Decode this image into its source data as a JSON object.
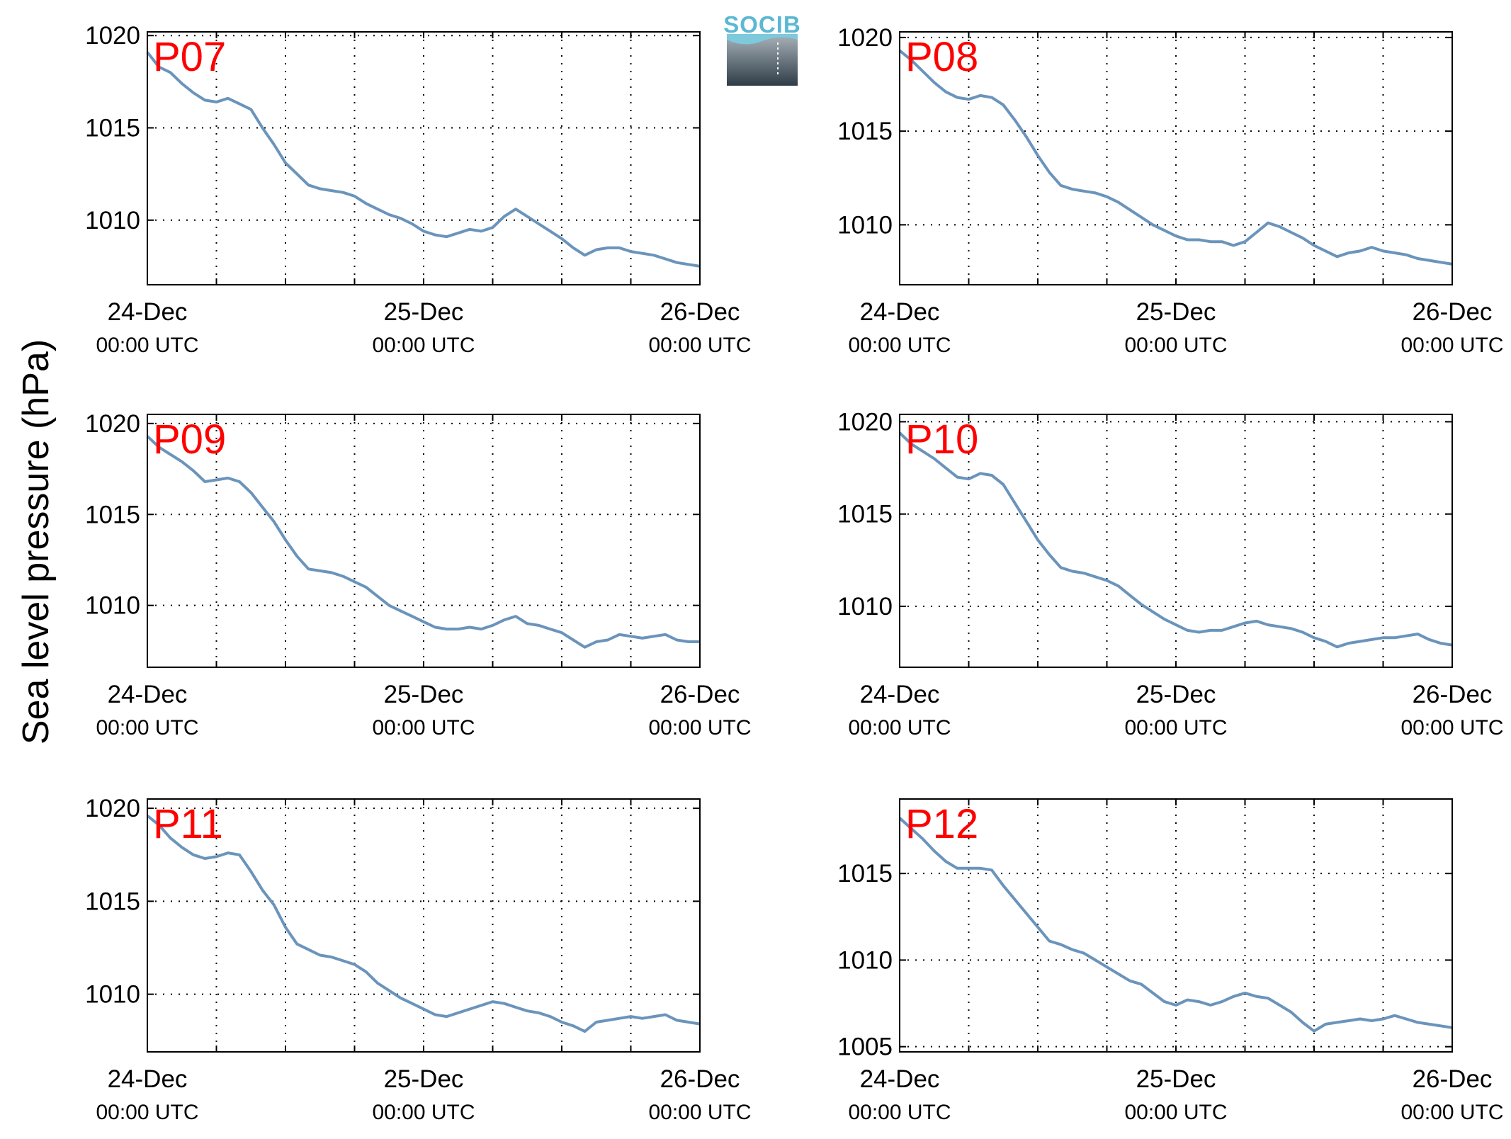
{
  "figure": {
    "ylabel": "Sea level pressure (hPa)",
    "logo_text": "SOCIB",
    "line_color": "#6a94bb",
    "label_color": "#ff0000"
  },
  "chart_data": [
    {
      "type": "line",
      "label": "P07",
      "xlim": [
        0,
        48
      ],
      "ylim": [
        1006.5,
        1020.2
      ],
      "yticks": [
        1010,
        1015,
        1020
      ],
      "xticks": [
        0,
        6,
        12,
        18,
        24,
        30,
        36,
        42,
        48
      ],
      "xticklabels": [
        {
          "at": 0,
          "date": "24-Dec",
          "time": "00:00 UTC"
        },
        {
          "at": 24,
          "date": "25-Dec",
          "time": "00:00 UTC"
        },
        {
          "at": 48,
          "date": "26-Dec",
          "time": "00:00 UTC"
        }
      ],
      "grid": true,
      "x": [
        0,
        1,
        2,
        3,
        4,
        5,
        6,
        7,
        8,
        9,
        10,
        11,
        12,
        13,
        14,
        15,
        16,
        17,
        18,
        19,
        20,
        21,
        22,
        23,
        24,
        25,
        26,
        27,
        28,
        29,
        30,
        31,
        32,
        33,
        34,
        35,
        36,
        37,
        38,
        39,
        40,
        41,
        42,
        43,
        44,
        45,
        46,
        47,
        48
      ],
      "y": [
        1019.1,
        1018.3,
        1018.0,
        1017.4,
        1016.9,
        1016.5,
        1016.4,
        1016.6,
        1016.3,
        1016.0,
        1015.0,
        1014.1,
        1013.1,
        1012.5,
        1011.9,
        1011.7,
        1011.6,
        1011.5,
        1011.3,
        1010.9,
        1010.6,
        1010.3,
        1010.1,
        1009.8,
        1009.4,
        1009.2,
        1009.1,
        1009.3,
        1009.5,
        1009.4,
        1009.6,
        1010.2,
        1010.6,
        1010.2,
        1009.8,
        1009.4,
        1009.0,
        1008.5,
        1008.1,
        1008.4,
        1008.5,
        1008.5,
        1008.3,
        1008.2,
        1008.1,
        1007.9,
        1007.7,
        1007.6,
        1007.5
      ]
    },
    {
      "type": "line",
      "label": "P08",
      "xlim": [
        0,
        48
      ],
      "ylim": [
        1006.8,
        1020.3
      ],
      "yticks": [
        1010,
        1015,
        1020
      ],
      "xticks": [
        0,
        6,
        12,
        18,
        24,
        30,
        36,
        42,
        48
      ],
      "xticklabels": [
        {
          "at": 0,
          "date": "24-Dec",
          "time": "00:00 UTC"
        },
        {
          "at": 24,
          "date": "25-Dec",
          "time": "00:00 UTC"
        },
        {
          "at": 48,
          "date": "26-Dec",
          "time": "00:00 UTC"
        }
      ],
      "grid": true,
      "x": [
        0,
        1,
        2,
        3,
        4,
        5,
        6,
        7,
        8,
        9,
        10,
        11,
        12,
        13,
        14,
        15,
        16,
        17,
        18,
        19,
        20,
        21,
        22,
        23,
        24,
        25,
        26,
        27,
        28,
        29,
        30,
        31,
        32,
        33,
        34,
        35,
        36,
        37,
        38,
        39,
        40,
        41,
        42,
        43,
        44,
        45,
        46,
        47,
        48
      ],
      "y": [
        1019.3,
        1018.8,
        1018.2,
        1017.6,
        1017.1,
        1016.8,
        1016.7,
        1016.9,
        1016.8,
        1016.4,
        1015.6,
        1014.7,
        1013.7,
        1012.8,
        1012.1,
        1011.9,
        1011.8,
        1011.7,
        1011.5,
        1011.2,
        1010.8,
        1010.4,
        1010.0,
        1009.7,
        1009.4,
        1009.2,
        1009.2,
        1009.1,
        1009.1,
        1008.9,
        1009.1,
        1009.6,
        1010.1,
        1009.9,
        1009.6,
        1009.3,
        1008.9,
        1008.6,
        1008.3,
        1008.5,
        1008.6,
        1008.8,
        1008.6,
        1008.5,
        1008.4,
        1008.2,
        1008.1,
        1008.0,
        1007.9
      ]
    },
    {
      "type": "line",
      "label": "P09",
      "xlim": [
        0,
        48
      ],
      "ylim": [
        1006.6,
        1020.5
      ],
      "yticks": [
        1010,
        1015,
        1020
      ],
      "xticks": [
        0,
        6,
        12,
        18,
        24,
        30,
        36,
        42,
        48
      ],
      "xticklabels": [
        {
          "at": 0,
          "date": "24-Dec",
          "time": "00:00 UTC"
        },
        {
          "at": 24,
          "date": "25-Dec",
          "time": "00:00 UTC"
        },
        {
          "at": 48,
          "date": "26-Dec",
          "time": "00:00 UTC"
        }
      ],
      "grid": true,
      "x": [
        0,
        1,
        2,
        3,
        4,
        5,
        6,
        7,
        8,
        9,
        10,
        11,
        12,
        13,
        14,
        15,
        16,
        17,
        18,
        19,
        20,
        21,
        22,
        23,
        24,
        25,
        26,
        27,
        28,
        29,
        30,
        31,
        32,
        33,
        34,
        35,
        36,
        37,
        38,
        39,
        40,
        41,
        42,
        43,
        44,
        45,
        46,
        47,
        48
      ],
      "y": [
        1019.3,
        1018.7,
        1018.3,
        1017.9,
        1017.4,
        1016.8,
        1016.9,
        1017.0,
        1016.8,
        1016.2,
        1015.4,
        1014.6,
        1013.6,
        1012.7,
        1012.0,
        1011.9,
        1011.8,
        1011.6,
        1011.3,
        1011.0,
        1010.5,
        1010.0,
        1009.7,
        1009.4,
        1009.1,
        1008.8,
        1008.7,
        1008.7,
        1008.8,
        1008.7,
        1008.9,
        1009.2,
        1009.4,
        1009.0,
        1008.9,
        1008.7,
        1008.5,
        1008.1,
        1007.7,
        1008.0,
        1008.1,
        1008.4,
        1008.3,
        1008.2,
        1008.3,
        1008.4,
        1008.1,
        1008.0,
        1008.0
      ]
    },
    {
      "type": "line",
      "label": "P10",
      "xlim": [
        0,
        48
      ],
      "ylim": [
        1006.7,
        1020.4
      ],
      "yticks": [
        1010,
        1015,
        1020
      ],
      "xticks": [
        0,
        6,
        12,
        18,
        24,
        30,
        36,
        42,
        48
      ],
      "xticklabels": [
        {
          "at": 0,
          "date": "24-Dec",
          "time": "00:00 UTC"
        },
        {
          "at": 24,
          "date": "25-Dec",
          "time": "00:00 UTC"
        },
        {
          "at": 48,
          "date": "26-Dec",
          "time": "00:00 UTC"
        }
      ],
      "grid": true,
      "x": [
        0,
        1,
        2,
        3,
        4,
        5,
        6,
        7,
        8,
        9,
        10,
        11,
        12,
        13,
        14,
        15,
        16,
        17,
        18,
        19,
        20,
        21,
        22,
        23,
        24,
        25,
        26,
        27,
        28,
        29,
        30,
        31,
        32,
        33,
        34,
        35,
        36,
        37,
        38,
        39,
        40,
        41,
        42,
        43,
        44,
        45,
        46,
        47,
        48
      ],
      "y": [
        1019.4,
        1018.8,
        1018.4,
        1018.0,
        1017.5,
        1017.0,
        1016.9,
        1017.2,
        1017.1,
        1016.6,
        1015.6,
        1014.6,
        1013.6,
        1012.8,
        1012.1,
        1011.9,
        1011.8,
        1011.6,
        1011.4,
        1011.1,
        1010.6,
        1010.1,
        1009.7,
        1009.3,
        1009.0,
        1008.7,
        1008.6,
        1008.7,
        1008.7,
        1008.9,
        1009.1,
        1009.2,
        1009.0,
        1008.9,
        1008.8,
        1008.6,
        1008.3,
        1008.1,
        1007.8,
        1008.0,
        1008.1,
        1008.2,
        1008.3,
        1008.3,
        1008.4,
        1008.5,
        1008.2,
        1008.0,
        1007.9
      ]
    },
    {
      "type": "line",
      "label": "P11",
      "xlim": [
        0,
        48
      ],
      "ylim": [
        1006.9,
        1020.5
      ],
      "yticks": [
        1010,
        1015,
        1020
      ],
      "xticks": [
        0,
        6,
        12,
        18,
        24,
        30,
        36,
        42,
        48
      ],
      "xticklabels": [
        {
          "at": 0,
          "date": "24-Dec",
          "time": "00:00 UTC"
        },
        {
          "at": 24,
          "date": "25-Dec",
          "time": "00:00 UTC"
        },
        {
          "at": 48,
          "date": "26-Dec",
          "time": "00:00 UTC"
        }
      ],
      "grid": true,
      "x": [
        0,
        1,
        2,
        3,
        4,
        5,
        6,
        7,
        8,
        9,
        10,
        11,
        12,
        13,
        14,
        15,
        16,
        17,
        18,
        19,
        20,
        21,
        22,
        23,
        24,
        25,
        26,
        27,
        28,
        29,
        30,
        31,
        32,
        33,
        34,
        35,
        36,
        37,
        38,
        39,
        40,
        41,
        42,
        43,
        44,
        45,
        46,
        47,
        48
      ],
      "y": [
        1019.6,
        1019.1,
        1018.4,
        1017.9,
        1017.5,
        1017.3,
        1017.4,
        1017.6,
        1017.5,
        1016.6,
        1015.6,
        1014.8,
        1013.6,
        1012.7,
        1012.4,
        1012.1,
        1012.0,
        1011.8,
        1011.6,
        1011.2,
        1010.6,
        1010.2,
        1009.8,
        1009.5,
        1009.2,
        1008.9,
        1008.8,
        1009.0,
        1009.2,
        1009.4,
        1009.6,
        1009.5,
        1009.3,
        1009.1,
        1009.0,
        1008.8,
        1008.5,
        1008.3,
        1008.0,
        1008.5,
        1008.6,
        1008.7,
        1008.8,
        1008.7,
        1008.8,
        1008.9,
        1008.6,
        1008.5,
        1008.4
      ]
    },
    {
      "type": "line",
      "label": "P12",
      "xlim": [
        0,
        48
      ],
      "ylim": [
        1004.7,
        1019.3
      ],
      "yticks": [
        1005,
        1010,
        1015
      ],
      "xticks": [
        0,
        6,
        12,
        18,
        24,
        30,
        36,
        42,
        48
      ],
      "xticklabels": [
        {
          "at": 0,
          "date": "24-Dec",
          "time": "00:00 UTC"
        },
        {
          "at": 24,
          "date": "25-Dec",
          "time": "00:00 UTC"
        },
        {
          "at": 48,
          "date": "26-Dec",
          "time": "00:00 UTC"
        }
      ],
      "grid": true,
      "x": [
        0,
        1,
        2,
        3,
        4,
        5,
        6,
        7,
        8,
        9,
        10,
        11,
        12,
        13,
        14,
        15,
        16,
        17,
        18,
        19,
        20,
        21,
        22,
        23,
        24,
        25,
        26,
        27,
        28,
        29,
        30,
        31,
        32,
        33,
        34,
        35,
        36,
        37,
        38,
        39,
        40,
        41,
        42,
        43,
        44,
        45,
        46,
        47,
        48
      ],
      "y": [
        1018.2,
        1017.6,
        1017.0,
        1016.3,
        1015.7,
        1015.3,
        1015.3,
        1015.3,
        1015.2,
        1014.3,
        1013.5,
        1012.7,
        1011.9,
        1011.1,
        1010.9,
        1010.6,
        1010.4,
        1010.0,
        1009.6,
        1009.2,
        1008.8,
        1008.6,
        1008.1,
        1007.6,
        1007.4,
        1007.7,
        1007.6,
        1007.4,
        1007.6,
        1007.9,
        1008.1,
        1007.9,
        1007.8,
        1007.4,
        1007.0,
        1006.4,
        1005.9,
        1006.3,
        1006.4,
        1006.5,
        1006.6,
        1006.5,
        1006.6,
        1006.8,
        1006.6,
        1006.4,
        1006.3,
        1006.2,
        1006.1
      ]
    }
  ]
}
